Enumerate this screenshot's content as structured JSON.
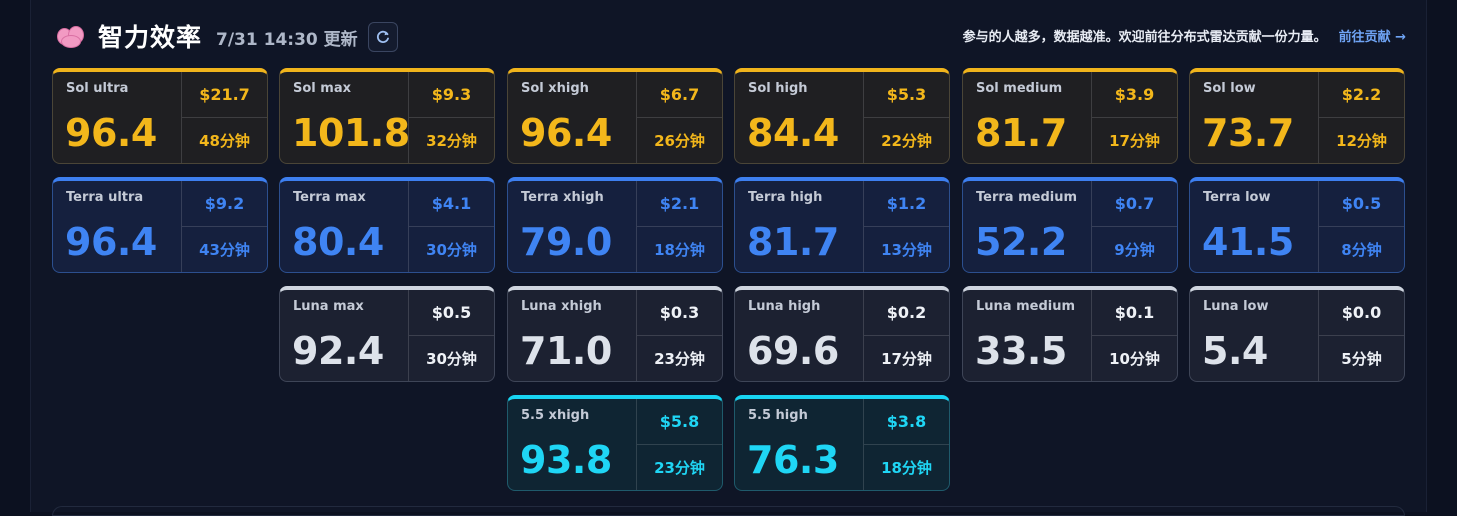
{
  "header": {
    "title": "智力效率",
    "timestamp": "7/31 14:30 更新",
    "refresh_icon": "refresh-icon",
    "brain_icon": "brain-icon"
  },
  "notice": {
    "text": "参与的人越多，数据越准。欢迎前往分布式雷达贡献一份力量。",
    "link": "前往贡献 →"
  },
  "colors": {
    "sol": "#f3b71b",
    "terra": "#3f84f3",
    "luna": "#dde2ea",
    "v55": "#1fd6f5"
  },
  "cards": {
    "sol": [
      {
        "name": "Sol ultra",
        "score": "96.4",
        "price": "$21.7",
        "time": "48分钟"
      },
      {
        "name": "Sol max",
        "score": "101.8",
        "price": "$9.3",
        "time": "32分钟"
      },
      {
        "name": "Sol xhigh",
        "score": "96.4",
        "price": "$6.7",
        "time": "26分钟"
      },
      {
        "name": "Sol high",
        "score": "84.4",
        "price": "$5.3",
        "time": "22分钟"
      },
      {
        "name": "Sol medium",
        "score": "81.7",
        "price": "$3.9",
        "time": "17分钟"
      },
      {
        "name": "Sol low",
        "score": "73.7",
        "price": "$2.2",
        "time": "12分钟"
      }
    ],
    "terra": [
      {
        "name": "Terra ultra",
        "score": "96.4",
        "price": "$9.2",
        "time": "43分钟"
      },
      {
        "name": "Terra max",
        "score": "80.4",
        "price": "$4.1",
        "time": "30分钟"
      },
      {
        "name": "Terra xhigh",
        "score": "79.0",
        "price": "$2.1",
        "time": "18分钟"
      },
      {
        "name": "Terra high",
        "score": "81.7",
        "price": "$1.2",
        "time": "13分钟"
      },
      {
        "name": "Terra medium",
        "score": "52.2",
        "price": "$0.7",
        "time": "9分钟"
      },
      {
        "name": "Terra low",
        "score": "41.5",
        "price": "$0.5",
        "time": "8分钟"
      }
    ],
    "luna": [
      {
        "name": "Luna max",
        "score": "92.4",
        "price": "$0.5",
        "time": "30分钟"
      },
      {
        "name": "Luna xhigh",
        "score": "71.0",
        "price": "$0.3",
        "time": "23分钟"
      },
      {
        "name": "Luna high",
        "score": "69.6",
        "price": "$0.2",
        "time": "17分钟"
      },
      {
        "name": "Luna medium",
        "score": "33.5",
        "price": "$0.1",
        "time": "10分钟"
      },
      {
        "name": "Luna low",
        "score": "5.4",
        "price": "$0.0",
        "time": "5分钟"
      }
    ],
    "v55": [
      {
        "name": "5.5 xhigh",
        "score": "93.8",
        "price": "$5.8",
        "time": "23分钟"
      },
      {
        "name": "5.5 high",
        "score": "76.3",
        "price": "$3.8",
        "time": "18分钟"
      }
    ]
  }
}
